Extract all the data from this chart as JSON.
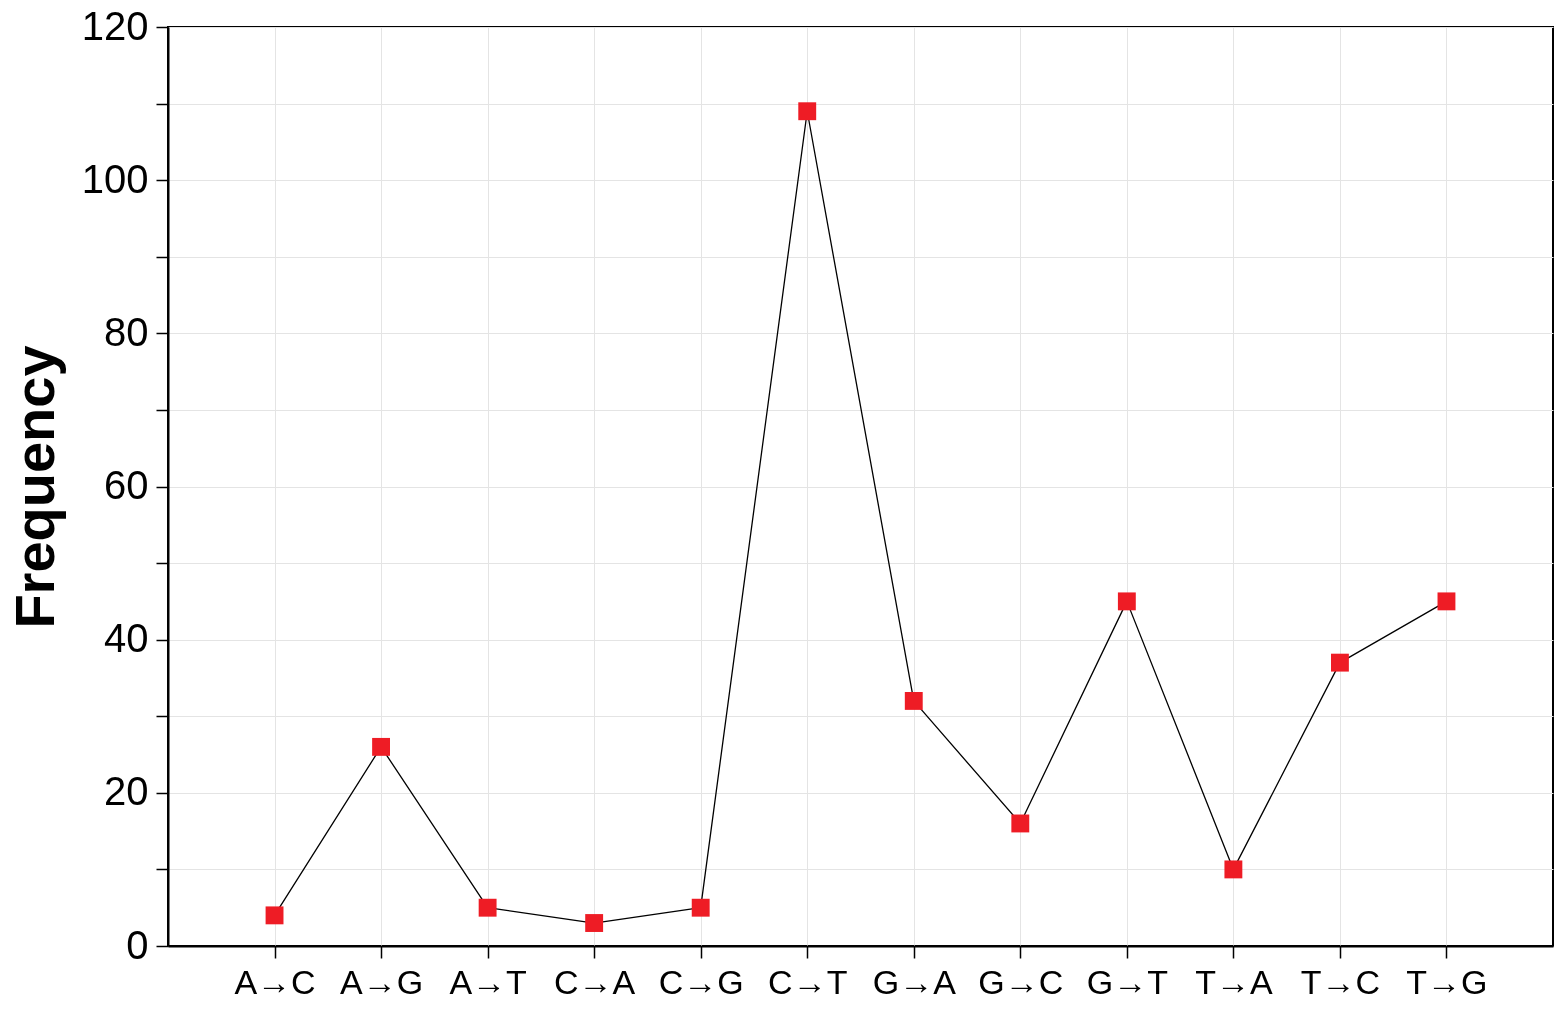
{
  "chart_data": {
    "type": "line",
    "ylabel": "Frequency",
    "categories": [
      "A→C",
      "A→G",
      "A→T",
      "C→A",
      "C→G",
      "C→T",
      "G→A",
      "G→C",
      "G→T",
      "T→A",
      "T→C",
      "T→G"
    ],
    "series": [
      {
        "color": "#ee1c25",
        "values": [
          4,
          26,
          5,
          3,
          5,
          109,
          32,
          16,
          45,
          10,
          37,
          45
        ]
      }
    ],
    "ylim": [
      0,
      120
    ],
    "yticks": [
      0,
      {
        "value": 10,
        "label": null
      },
      20,
      {
        "value": 30,
        "label": null
      },
      40,
      {
        "value": 50,
        "label": null
      },
      60,
      {
        "value": 70,
        "label": null
      },
      80,
      {
        "value": 90,
        "label": null
      },
      100,
      {
        "value": 110,
        "label": null
      },
      120
    ],
    "grid": true,
    "marker": "square",
    "line_style": "solid"
  }
}
